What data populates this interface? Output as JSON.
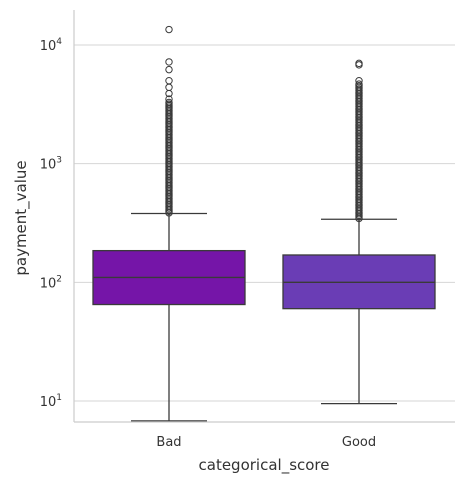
{
  "chart_data": {
    "type": "box",
    "xlabel": "categorical_score",
    "ylabel": "payment_value",
    "yscale": "log",
    "ylim": [
      6.5,
      20000
    ],
    "grid": "horizontal",
    "categories": [
      "Bad",
      "Good"
    ],
    "y_ticks": [
      {
        "value": 10,
        "base": "10",
        "exp": "1"
      },
      {
        "value": 100,
        "base": "10",
        "exp": "2"
      },
      {
        "value": 1000,
        "base": "10",
        "exp": "3"
      },
      {
        "value": 10000,
        "base": "10",
        "exp": "4"
      }
    ],
    "boxes": [
      {
        "category": "Bad",
        "color": "#7515a8",
        "whisker_low": 6.8,
        "q1": 65,
        "median": 110,
        "q3": 185,
        "whisker_high": 380,
        "outliers_dense_range": [
          385,
          3300
        ],
        "outliers": [
          3500,
          3900,
          4400,
          5000,
          6200,
          7200,
          13500
        ]
      },
      {
        "category": "Good",
        "color": "#6a3db5",
        "whisker_low": 9.5,
        "q1": 60,
        "median": 100,
        "q3": 170,
        "whisker_high": 340,
        "outliers_dense_range": [
          345,
          4700
        ],
        "outliers": [
          5000,
          6800,
          7000
        ]
      }
    ]
  }
}
